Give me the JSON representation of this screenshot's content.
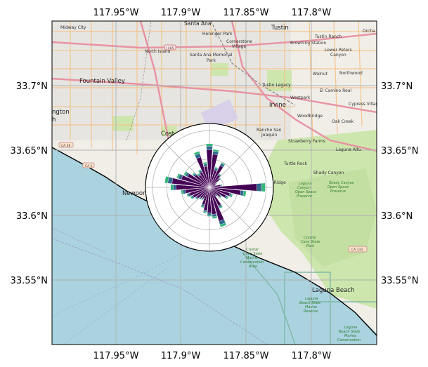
{
  "map": {
    "lon_ticks": [
      "117.95°W",
      "117.9°W",
      "117.85°W",
      "117.8°W"
    ],
    "lat_ticks": [
      "33.7°N",
      "33.65°N",
      "33.6°N",
      "33.55°N"
    ],
    "colors": {
      "ocean": "#aad3df",
      "land": "#f1eee8",
      "park": "#cde6ad",
      "urban": "#dedede",
      "coast": "#000000",
      "grid": "#b0b0b0",
      "rose_dark": "#440154",
      "rose_mid": "#31688e",
      "rose_teal": "#35b779"
    },
    "places": [
      {
        "id": "midway-city",
        "label": "Midway City"
      },
      {
        "id": "santa-ana",
        "label": "Santa Ana"
      },
      {
        "id": "tustin",
        "label": "Tustin"
      },
      {
        "id": "orchard-hills",
        "label": "Orcha"
      },
      {
        "id": "heninger-park",
        "label": "Heninger Park"
      },
      {
        "id": "cornerstone-village",
        "label": "Cornerstone"
      },
      {
        "id": "cornerstone-village-2",
        "label": "Village"
      },
      {
        "id": "tustin-ranch",
        "label": "Tustin Ranch"
      },
      {
        "id": "browning-station",
        "label": "Browning Station"
      },
      {
        "id": "lower-peters",
        "label": "Lower Peters"
      },
      {
        "id": "lower-peters-2",
        "label": "Canyon"
      },
      {
        "id": "north-island",
        "label": "North Island"
      },
      {
        "id": "santa-ana-memorial",
        "label": "Santa Ana Memorial"
      },
      {
        "id": "santa-ana-memorial-2",
        "label": "Park"
      },
      {
        "id": "fountain-valley",
        "label": "Fountain Valley"
      },
      {
        "id": "walnut",
        "label": "Walnut"
      },
      {
        "id": "northwood",
        "label": "Northwood"
      },
      {
        "id": "tustin-legacy",
        "label": "Tustin Legacy"
      },
      {
        "id": "el-camino-real",
        "label": "El Camino Real"
      },
      {
        "id": "westpark",
        "label": "Westpark"
      },
      {
        "id": "irvine",
        "label": "Irvine"
      },
      {
        "id": "cypress-village",
        "label": "Cypress Villag"
      },
      {
        "id": "woodbridge",
        "label": "Woodbridge"
      },
      {
        "id": "oak-creek",
        "label": "Oak Creek"
      },
      {
        "id": "huntington",
        "label": "ngton"
      },
      {
        "id": "huntington-2",
        "label": "h"
      },
      {
        "id": "costa",
        "label": "Cost"
      },
      {
        "id": "rancho-san-joaquin",
        "label": "Rancho San"
      },
      {
        "id": "rancho-san-joaquin-2",
        "label": "Joaquin"
      },
      {
        "id": "strawberry-farms",
        "label": "Strawberry Farms"
      },
      {
        "id": "laguna-altura",
        "label": "Laguna Altu"
      },
      {
        "id": "turtle-rock",
        "label": "Turtle Rock"
      },
      {
        "id": "shady-canyon",
        "label": "Shady Canyon"
      },
      {
        "id": "turtle-ridge",
        "label": "Turtle Ridge"
      },
      {
        "id": "newport",
        "label": "Newport"
      },
      {
        "id": "laguna-beach",
        "label": "Laguna Beach"
      }
    ],
    "parks": [
      {
        "id": "shady-canyon-park",
        "lines": [
          "Shady Canyon",
          "Open Space",
          "Preserve"
        ]
      },
      {
        "id": "wilderness",
        "lines": [
          "Laguna",
          "Canyon",
          "Open Space",
          "Preserve"
        ]
      },
      {
        "id": "crystal-cove",
        "lines": [
          "Crystal",
          "Cove State",
          "Park"
        ]
      },
      {
        "id": "crystal-cove-marine",
        "lines": [
          "Crystal",
          "Cove State",
          "Marine",
          "Conservation",
          "Area"
        ]
      },
      {
        "id": "laguna-beach-reserve",
        "lines": [
          "Laguna",
          "Beach State",
          "Marine",
          "Reserve"
        ]
      },
      {
        "id": "laguna-beach-conservation",
        "lines": [
          "Laguna",
          "Beach State",
          "Marine",
          "Conservation"
        ]
      }
    ],
    "shields": [
      {
        "id": "ca-39",
        "label": "CA 39"
      },
      {
        "id": "ca-1",
        "label": "CA 1"
      },
      {
        "id": "ca-133",
        "label": "CA 133"
      },
      {
        "id": "i-405",
        "label": "I 405"
      }
    ]
  },
  "rose": {
    "sector_count": 36,
    "rings": 4,
    "dark": [
      0.62,
      0.55,
      0.3,
      0.4,
      0.25,
      0.2,
      0.12,
      0.1,
      0.18,
      0.78,
      0.52,
      0.35,
      0.3,
      0.22,
      0.16,
      0.34,
      0.58,
      0.45,
      0.42,
      0.38,
      0.3,
      0.2,
      0.22,
      0.26,
      0.3,
      0.34,
      0.4,
      0.55,
      0.62,
      0.48,
      0.4,
      0.3,
      0.25,
      0.28,
      0.52,
      0.35
    ],
    "mid": [
      0.06,
      0.05,
      0.03,
      0.04,
      0.02,
      0.02,
      0.01,
      0.01,
      0.02,
      0.08,
      0.05,
      0.03,
      0.03,
      0.02,
      0.02,
      0.03,
      0.06,
      0.04,
      0.04,
      0.03,
      0.03,
      0.02,
      0.02,
      0.02,
      0.03,
      0.03,
      0.04,
      0.05,
      0.07,
      0.05,
      0.04,
      0.03,
      0.02,
      0.03,
      0.06,
      0.04
    ],
    "teal": [
      0.04,
      0.03,
      0.02,
      0.02,
      0.01,
      0.01,
      0.01,
      0.01,
      0.01,
      0.06,
      0.04,
      0.02,
      0.02,
      0.01,
      0.01,
      0.02,
      0.04,
      0.03,
      0.02,
      0.02,
      0.02,
      0.01,
      0.01,
      0.01,
      0.02,
      0.02,
      0.03,
      0.04,
      0.05,
      0.03,
      0.03,
      0.02,
      0.02,
      0.02,
      0.04,
      0.03
    ]
  }
}
